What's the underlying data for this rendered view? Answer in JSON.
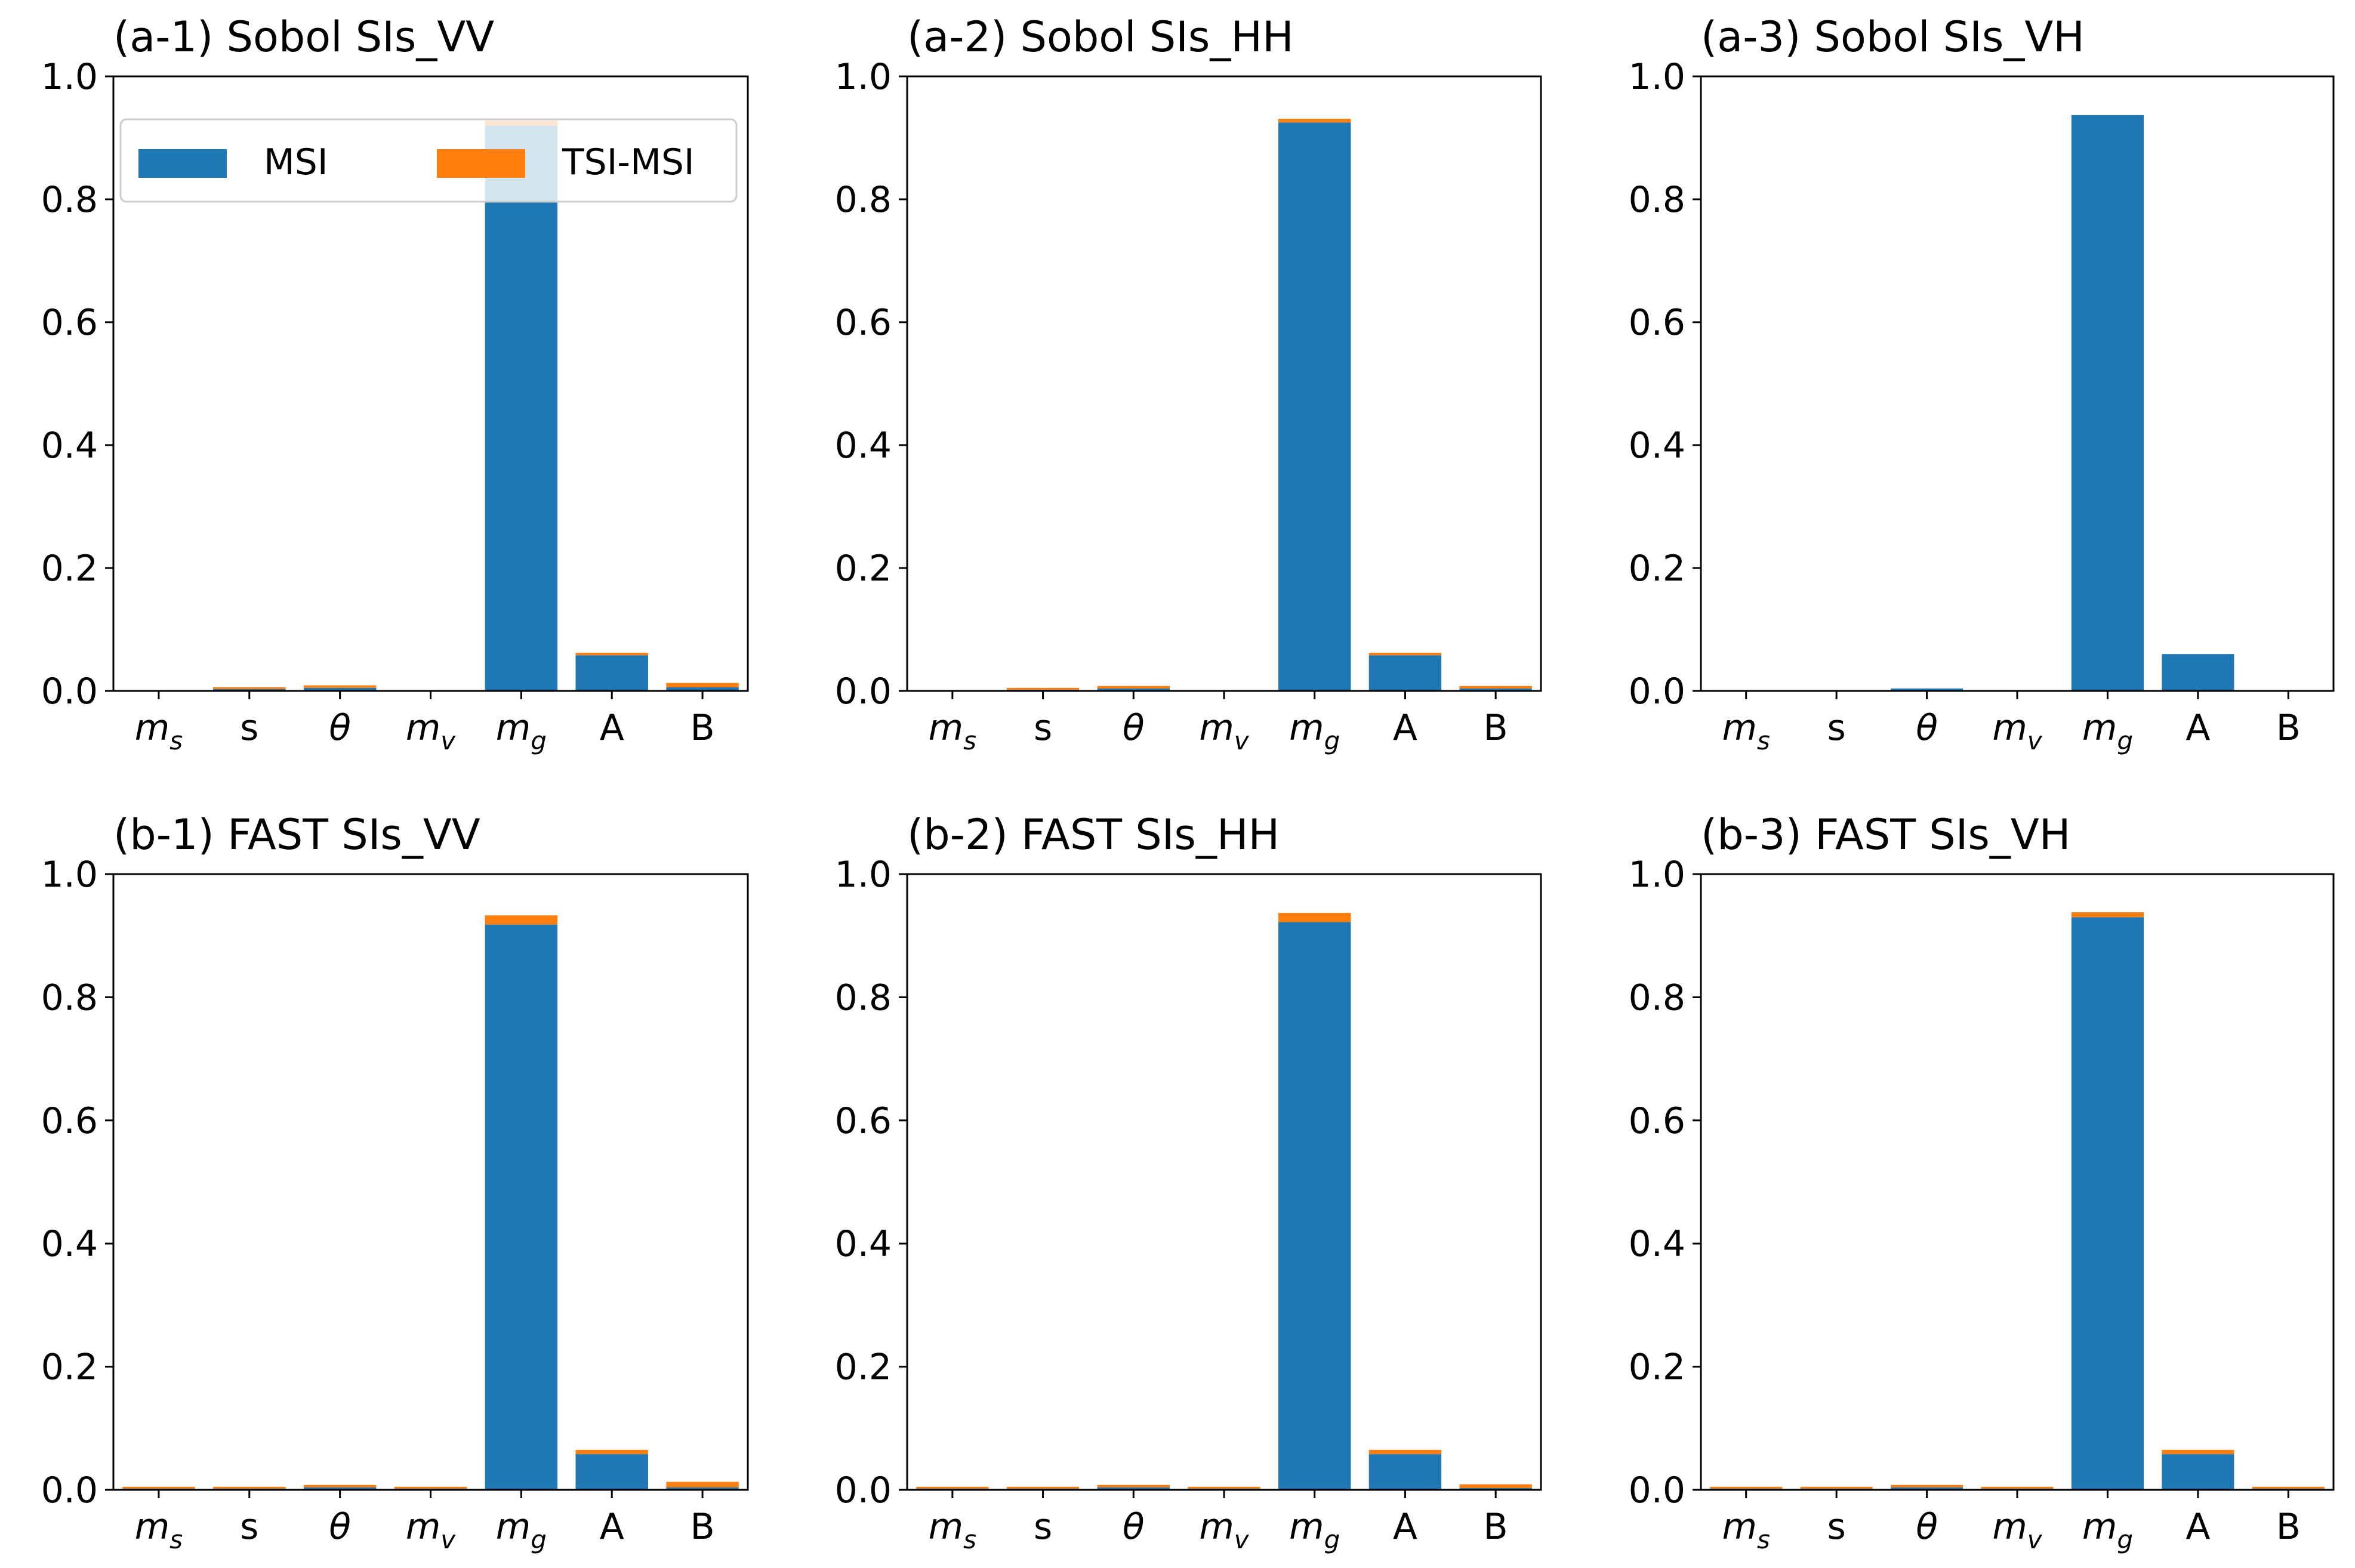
{
  "colors": {
    "msi": "#1f77b4",
    "tsi_msi": "#ff7f0e",
    "axis": "#000000",
    "background": "#ffffff"
  },
  "chart_data": [
    {
      "type": "bar",
      "stacked": true,
      "title": "(a-1) Sobol SIs_VV",
      "categories": [
        "m_s",
        "s",
        "θ",
        "m_v",
        "m_g",
        "A",
        "B"
      ],
      "series": [
        {
          "name": "MSI",
          "values": [
            0.0,
            0.003,
            0.005,
            0.0,
            0.92,
            0.058,
            0.006
          ]
        },
        {
          "name": "TSI-MSI",
          "values": [
            0.0,
            0.003,
            0.004,
            0.0,
            0.008,
            0.004,
            0.007
          ]
        }
      ],
      "ylim": [
        0,
        1.0
      ],
      "yticks": [
        0.0,
        0.2,
        0.4,
        0.6,
        0.8,
        1.0
      ],
      "legend": {
        "position": "top",
        "entries": [
          "MSI",
          "TSI-MSI"
        ]
      }
    },
    {
      "type": "bar",
      "stacked": true,
      "title": "(a-2) Sobol SIs_HH",
      "categories": [
        "m_s",
        "s",
        "θ",
        "m_v",
        "m_g",
        "A",
        "B"
      ],
      "series": [
        {
          "name": "MSI",
          "values": [
            0.0,
            0.002,
            0.004,
            0.0,
            0.925,
            0.058,
            0.004
          ]
        },
        {
          "name": "TSI-MSI",
          "values": [
            0.0,
            0.003,
            0.004,
            0.0,
            0.006,
            0.004,
            0.004
          ]
        }
      ],
      "ylim": [
        0,
        1.0
      ],
      "yticks": [
        0.0,
        0.2,
        0.4,
        0.6,
        0.8,
        1.0
      ]
    },
    {
      "type": "bar",
      "stacked": true,
      "title": "(a-3) Sobol SIs_VH",
      "categories": [
        "m_s",
        "s",
        "θ",
        "m_v",
        "m_g",
        "A",
        "B"
      ],
      "series": [
        {
          "name": "MSI",
          "values": [
            0.0,
            0.0,
            0.004,
            0.0,
            0.937,
            0.06,
            0.0
          ]
        },
        {
          "name": "TSI-MSI",
          "values": [
            0.0,
            0.0,
            0.0,
            0.0,
            0.0,
            0.0,
            0.0
          ]
        }
      ],
      "ylim": [
        0,
        1.0
      ],
      "yticks": [
        0.0,
        0.2,
        0.4,
        0.6,
        0.8,
        1.0
      ]
    },
    {
      "type": "bar",
      "stacked": true,
      "title": "(b-1) FAST SIs_VV",
      "categories": [
        "m_s",
        "s",
        "θ",
        "m_v",
        "m_g",
        "A",
        "B"
      ],
      "series": [
        {
          "name": "MSI",
          "values": [
            0.002,
            0.002,
            0.004,
            0.002,
            0.918,
            0.058,
            0.004
          ]
        },
        {
          "name": "TSI-MSI",
          "values": [
            0.003,
            0.003,
            0.004,
            0.003,
            0.015,
            0.007,
            0.009
          ]
        }
      ],
      "ylim": [
        0,
        1.0
      ],
      "yticks": [
        0.0,
        0.2,
        0.4,
        0.6,
        0.8,
        1.0
      ]
    },
    {
      "type": "bar",
      "stacked": true,
      "title": "(b-2) FAST SIs_HH",
      "categories": [
        "m_s",
        "s",
        "θ",
        "m_v",
        "m_g",
        "A",
        "B"
      ],
      "series": [
        {
          "name": "MSI",
          "values": [
            0.002,
            0.002,
            0.004,
            0.002,
            0.922,
            0.058,
            0.003
          ]
        },
        {
          "name": "TSI-MSI",
          "values": [
            0.003,
            0.003,
            0.004,
            0.003,
            0.015,
            0.007,
            0.006
          ]
        }
      ],
      "ylim": [
        0,
        1.0
      ],
      "yticks": [
        0.0,
        0.2,
        0.4,
        0.6,
        0.8,
        1.0
      ]
    },
    {
      "type": "bar",
      "stacked": true,
      "title": "(b-3) FAST SIs_VH",
      "categories": [
        "m_s",
        "s",
        "θ",
        "m_v",
        "m_g",
        "A",
        "B"
      ],
      "series": [
        {
          "name": "MSI",
          "values": [
            0.002,
            0.002,
            0.004,
            0.002,
            0.93,
            0.058,
            0.002
          ]
        },
        {
          "name": "TSI-MSI",
          "values": [
            0.003,
            0.003,
            0.004,
            0.003,
            0.008,
            0.007,
            0.003
          ]
        }
      ],
      "ylim": [
        0,
        1.0
      ],
      "yticks": [
        0.0,
        0.2,
        0.4,
        0.6,
        0.8,
        1.0
      ]
    }
  ]
}
